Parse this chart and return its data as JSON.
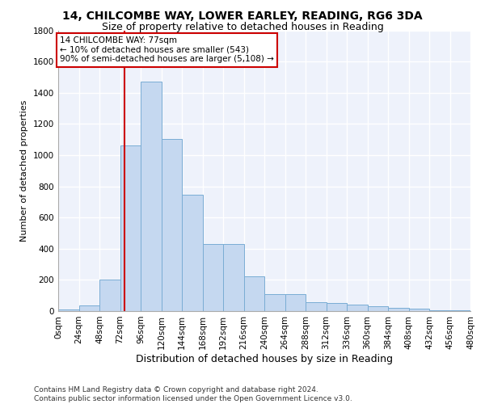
{
  "title1": "14, CHILCOMBE WAY, LOWER EARLEY, READING, RG6 3DA",
  "title2": "Size of property relative to detached houses in Reading",
  "xlabel": "Distribution of detached houses by size in Reading",
  "ylabel": "Number of detached properties",
  "bar_color": "#c5d8f0",
  "bar_edge_color": "#7aadd4",
  "background_color": "#eef2fb",
  "grid_color": "#ffffff",
  "bins": [
    0,
    24,
    48,
    72,
    96,
    120,
    144,
    168,
    192,
    216,
    240,
    264,
    288,
    312,
    336,
    360,
    384,
    408,
    432,
    456,
    480
  ],
  "values": [
    10,
    35,
    200,
    1060,
    1470,
    1105,
    745,
    430,
    430,
    225,
    110,
    110,
    55,
    50,
    40,
    30,
    20,
    15,
    5,
    5
  ],
  "tick_labels": [
    "0sqm",
    "24sqm",
    "48sqm",
    "72sqm",
    "96sqm",
    "120sqm",
    "144sqm",
    "168sqm",
    "192sqm",
    "216sqm",
    "240sqm",
    "264sqm",
    "288sqm",
    "312sqm",
    "336sqm",
    "360sqm",
    "384sqm",
    "408sqm",
    "432sqm",
    "456sqm",
    "480sqm"
  ],
  "vline_x": 77,
  "vline_color": "#cc0000",
  "annotation_line1": "14 CHILCOMBE WAY: 77sqm",
  "annotation_line2": "← 10% of detached houses are smaller (543)",
  "annotation_line3": "90% of semi-detached houses are larger (5,108) →",
  "annotation_box_color": "#ffffff",
  "annotation_box_edge": "#cc0000",
  "ylim": [
    0,
    1800
  ],
  "yticks": [
    0,
    200,
    400,
    600,
    800,
    1000,
    1200,
    1400,
    1600,
    1800
  ],
  "footer_line1": "Contains HM Land Registry data © Crown copyright and database right 2024.",
  "footer_line2": "Contains public sector information licensed under the Open Government Licence v3.0.",
  "title1_fontsize": 10,
  "title2_fontsize": 9,
  "xlabel_fontsize": 9,
  "ylabel_fontsize": 8,
  "tick_fontsize": 7.5,
  "annot_fontsize": 7.5,
  "footer_fontsize": 6.5
}
